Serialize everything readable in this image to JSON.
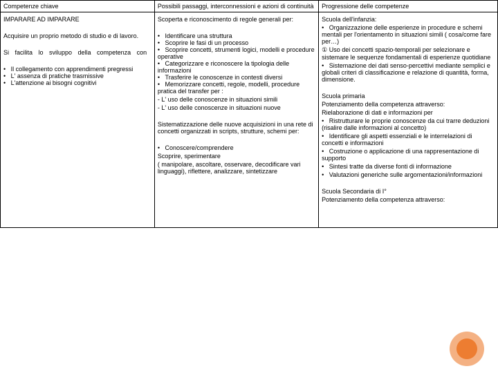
{
  "headers": {
    "col1": "Competenze chiave",
    "col2": "Possibili passaggi, interconnessioni e azioni di continuità",
    "col3": "Progressione delle competenze"
  },
  "col1": {
    "title": "IMPARARE AD IMPARARE",
    "p1": "Acquisire un proprio metodo di studio e di lavoro.",
    "p2": "Si facilita lo sviluppo della competenza con",
    "b1": "Il collegamento con apprendimenti pregressi",
    "b2": "L' assenza di pratiche trasmissive",
    "b3": "L'attenzione ai bisogni cognitivi"
  },
  "col2": {
    "intro": "Scoperta e riconoscimento di regole generali per:",
    "i1": "Identificare una struttura",
    "i2": "Scoprire le fasi di un processo",
    "i3": "Scoprire concetti, strumenti logici, modelli e procedure operative",
    "i4": "Categorizzare e riconoscere la tipologia delle informazioni",
    "i5": "Trasferire le conoscenze in contesti diversi",
    "i6": "Memorizzare concetti, regole, modelli, procedure pratica del transfer per :",
    "t1": "- L' uso delle conoscenze in situazioni simili",
    "t2": "- L' uso delle conoscenze in situazioni nuove",
    "sys": "Sistematizzazione delle nuove acquisizioni in una rete di concetti organizzati in scripts, strutture, schemi per:",
    "c1": "Conoscere/comprendere",
    "cextra": "Scoprire, sperimentare",
    "cparen": "( manipolare, ascoltare, osservare, decodificare vari linguaggi), riflettere, analizzare, sintetizzare"
  },
  "col3": {
    "s1title": "Scuola dell'infanzia:",
    "s1b1": "Organizzazione delle esperienze in procedure e schemi mentali per l'orientamento in situazioni simili ( cosa/come fare per…)",
    "s1clock": "① Uso dei concetti spazio-temporali per selezionare e sistemare le sequenze fondamentali di esperienze quotidiane",
    "s1b3": "Sistemazione dei dati senso-percettivi mediante semplici e globali criteri di classificazione e relazione di quantità, forma, dimensione.",
    "s2title": "Scuola primaria",
    "s2p": "Potenziamento della competenza attraverso:",
    "s2p2": "Rielaborazione di dati e informazioni per",
    "s2b1": "Ristrutturare le proprie conoscenze da cui trarre deduzioni (risalire dalle informazioni al concetto)",
    "s2b2": "Identificare gli aspetti essenziali e le interrelazioni di concetti e informazioni",
    "s2b3": "Costruzione o applicazione di una rappresentazione di supporto",
    "s2b4": "Sintesi tratte da diverse fonti di informazione",
    "s2b5": "Valutazioni generiche sulle argomentazioni/informazioni",
    "s3title": "Scuola Secondaria di I°",
    "s3p": "Potenziamento della competenza attraverso:"
  }
}
